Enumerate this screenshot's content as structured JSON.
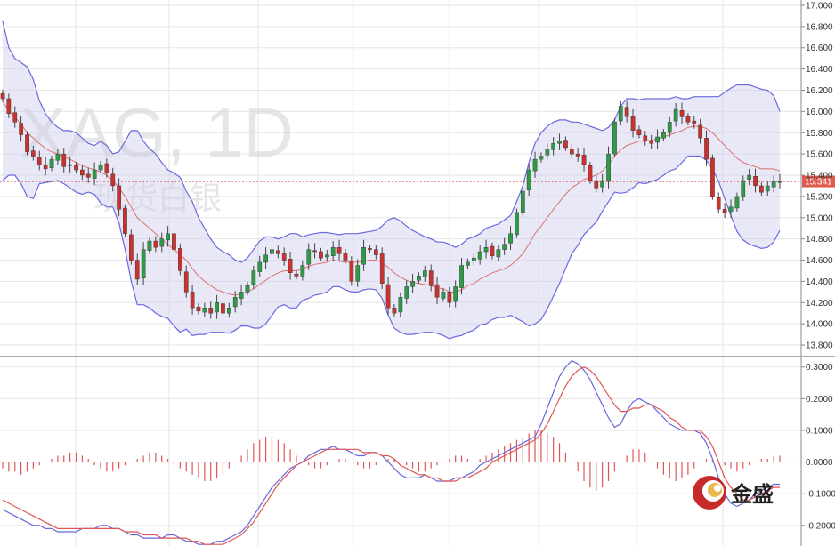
{
  "chart_data": [
    {
      "type": "candlestick",
      "title": "XAG, 1D",
      "subtitle": "现货白银",
      "y_axis_side": "right",
      "ylim": [
        13.7,
        17.05
      ],
      "yticks": [
        "17.000",
        "16.800",
        "16.600",
        "16.400",
        "16.200",
        "16.000",
        "15.800",
        "15.600",
        "15.400",
        "15.200",
        "15.000",
        "14.800",
        "14.600",
        "14.400",
        "14.200",
        "14.000",
        "13.800"
      ],
      "ytick_values": [
        17.0,
        16.8,
        16.6,
        16.4,
        16.2,
        16.0,
        15.8,
        15.6,
        15.4,
        15.2,
        15.0,
        14.8,
        14.6,
        14.4,
        14.2,
        14.0,
        13.8
      ],
      "grid": true,
      "last_price": 15.341,
      "last_price_label": "15.341",
      "overlays": [
        "bollinger_upper",
        "bollinger_middle",
        "bollinger_lower"
      ],
      "closes": [
        16.12,
        15.98,
        15.9,
        15.78,
        15.62,
        15.58,
        15.5,
        15.46,
        15.55,
        15.6,
        15.48,
        15.5,
        15.45,
        15.4,
        15.38,
        15.45,
        15.5,
        15.42,
        15.3,
        15.08,
        14.85,
        14.6,
        14.42,
        14.7,
        14.78,
        14.72,
        14.8,
        14.85,
        14.7,
        14.5,
        14.3,
        14.15,
        14.12,
        14.15,
        14.1,
        14.2,
        14.1,
        14.15,
        14.25,
        14.3,
        14.36,
        14.5,
        14.58,
        14.65,
        14.7,
        14.66,
        14.6,
        14.48,
        14.45,
        14.55,
        14.7,
        14.68,
        14.62,
        14.65,
        14.72,
        14.66,
        14.6,
        14.4,
        14.55,
        14.72,
        14.7,
        14.65,
        14.38,
        14.15,
        14.1,
        14.25,
        14.35,
        14.4,
        14.45,
        14.5,
        14.36,
        14.25,
        14.3,
        14.2,
        14.35,
        14.55,
        14.58,
        14.62,
        14.68,
        14.72,
        14.64,
        14.7,
        14.75,
        14.85,
        15.05,
        15.25,
        15.45,
        15.55,
        15.58,
        15.65,
        15.7,
        15.72,
        15.66,
        15.6,
        15.58,
        15.5,
        15.35,
        15.28,
        15.35,
        15.6,
        15.9,
        16.05,
        15.95,
        15.82,
        15.78,
        15.72,
        15.7,
        15.76,
        15.8,
        15.9,
        16.02,
        15.95,
        15.9,
        15.88,
        15.75,
        15.55,
        15.2,
        15.08,
        15.05,
        15.1,
        15.2,
        15.35,
        15.4,
        15.3,
        15.24,
        15.3,
        15.34,
        15.341
      ],
      "bollinger_upper": [
        16.85,
        16.6,
        16.5,
        16.46,
        16.42,
        16.3,
        16.1,
        15.98,
        15.9,
        15.85,
        15.82,
        15.82,
        15.8,
        15.75,
        15.7,
        15.68,
        15.72,
        15.68,
        15.6,
        15.62,
        15.72,
        15.82,
        15.82,
        15.72,
        15.65,
        15.6,
        15.52,
        15.45,
        15.42,
        15.38,
        15.25,
        15.15,
        15.0,
        14.9,
        14.8,
        14.72,
        14.68,
        14.65,
        14.6,
        14.58,
        14.62,
        14.7,
        14.78,
        14.82,
        14.82,
        14.8,
        14.82,
        14.85,
        14.85,
        14.82,
        14.84,
        14.85,
        14.86,
        14.86,
        14.85,
        14.84,
        14.85,
        14.85,
        14.85,
        14.86,
        14.87,
        14.88,
        14.92,
        14.98,
        15.0,
        14.97,
        14.92,
        14.88,
        14.85,
        14.82,
        14.8,
        14.77,
        14.77,
        14.75,
        14.72,
        14.75,
        14.8,
        14.82,
        14.85,
        14.9,
        14.92,
        14.94,
        14.98,
        15.02,
        15.15,
        15.3,
        15.52,
        15.7,
        15.8,
        15.86,
        15.9,
        15.92,
        15.92,
        15.9,
        15.9,
        15.88,
        15.86,
        15.84,
        15.82,
        15.85,
        15.92,
        16.05,
        16.12,
        16.12,
        16.11,
        16.12,
        16.12,
        16.12,
        16.12,
        16.12,
        16.14,
        16.12,
        16.12,
        16.14,
        16.14,
        16.14,
        16.14,
        16.14,
        16.18,
        16.22,
        16.25,
        16.25,
        16.25,
        16.23,
        16.21,
        16.2,
        16.15,
        16.0
      ],
      "bollinger_middle": [
        16.1,
        16.0,
        15.95,
        15.88,
        15.8,
        15.75,
        15.7,
        15.65,
        15.62,
        15.6,
        15.57,
        15.55,
        15.52,
        15.49,
        15.47,
        15.45,
        15.43,
        15.4,
        15.35,
        15.28,
        15.2,
        15.1,
        15.0,
        14.95,
        14.9,
        14.85,
        14.8,
        14.75,
        14.7,
        14.65,
        14.6,
        14.52,
        14.45,
        14.4,
        14.36,
        14.32,
        14.3,
        14.28,
        14.27,
        14.28,
        14.3,
        14.33,
        14.37,
        14.41,
        14.45,
        14.48,
        14.5,
        14.5,
        14.5,
        14.52,
        14.54,
        14.56,
        14.57,
        14.58,
        14.6,
        14.59,
        14.58,
        14.58,
        14.58,
        14.59,
        14.6,
        14.6,
        14.58,
        14.53,
        14.48,
        14.44,
        14.41,
        14.39,
        14.38,
        14.37,
        14.36,
        14.34,
        14.33,
        14.3,
        14.3,
        14.32,
        14.36,
        14.38,
        14.42,
        14.45,
        14.48,
        14.5,
        14.52,
        14.55,
        14.6,
        14.66,
        14.75,
        14.85,
        14.92,
        15.0,
        15.08,
        15.15,
        15.22,
        15.28,
        15.32,
        15.36,
        15.38,
        15.4,
        15.44,
        15.5,
        15.58,
        15.64,
        15.68,
        15.7,
        15.72,
        15.72,
        15.73,
        15.74,
        15.76,
        15.78,
        15.8,
        15.82,
        15.85,
        15.86,
        15.86,
        15.84,
        15.8,
        15.74,
        15.68,
        15.62,
        15.56,
        15.52,
        15.5,
        15.48,
        15.46,
        15.46,
        15.46,
        15.44
      ],
      "bollinger_lower": [
        15.35,
        15.4,
        15.4,
        15.32,
        15.2,
        15.18,
        15.32,
        15.33,
        15.34,
        15.35,
        15.32,
        15.28,
        15.24,
        15.22,
        15.24,
        15.22,
        15.14,
        15.1,
        15.1,
        14.95,
        14.7,
        14.4,
        14.18,
        14.18,
        14.15,
        14.1,
        14.07,
        14.05,
        13.98,
        13.92,
        13.95,
        13.89,
        13.9,
        13.9,
        13.92,
        13.92,
        13.92,
        13.91,
        13.94,
        13.98,
        13.98,
        13.96,
        13.96,
        14.0,
        14.08,
        14.16,
        14.18,
        14.15,
        14.15,
        14.22,
        14.24,
        14.27,
        14.28,
        14.3,
        14.35,
        14.35,
        14.32,
        14.3,
        14.3,
        14.32,
        14.33,
        14.32,
        14.24,
        14.08,
        13.96,
        13.92,
        13.9,
        13.9,
        13.91,
        13.92,
        13.92,
        13.91,
        13.89,
        13.86,
        13.88,
        13.89,
        13.92,
        13.94,
        13.99,
        14.0,
        14.04,
        14.06,
        14.06,
        14.08,
        14.05,
        14.02,
        13.98,
        14.0,
        14.04,
        14.14,
        14.26,
        14.38,
        14.52,
        14.66,
        14.74,
        14.84,
        14.9,
        14.96,
        15.06,
        15.15,
        15.24,
        15.23,
        15.24,
        15.28,
        15.33,
        15.32,
        15.34,
        15.36,
        15.4,
        15.44,
        15.46,
        15.52,
        15.58,
        15.58,
        15.58,
        15.54,
        15.46,
        15.34,
        15.18,
        15.02,
        14.87,
        14.79,
        14.75,
        14.73,
        14.71,
        14.72,
        14.77,
        14.88
      ]
    },
    {
      "type": "macd",
      "ylim": [
        -0.265,
        0.33
      ],
      "yticks": [
        "0.3000",
        "0.2000",
        "0.1000",
        "0.0000",
        "-0.1000",
        "-0.2000"
      ],
      "ytick_values": [
        0.3,
        0.2,
        0.1,
        0.0,
        -0.1,
        -0.2
      ],
      "grid": true,
      "series": [
        {
          "role": "macd",
          "color": "#6666dd",
          "values": [
            -0.15,
            -0.16,
            -0.17,
            -0.18,
            -0.19,
            -0.2,
            -0.2,
            -0.21,
            -0.21,
            -0.22,
            -0.22,
            -0.22,
            -0.22,
            -0.21,
            -0.21,
            -0.21,
            -0.2,
            -0.2,
            -0.21,
            -0.21,
            -0.22,
            -0.23,
            -0.23,
            -0.24,
            -0.24,
            -0.24,
            -0.24,
            -0.23,
            -0.23,
            -0.24,
            -0.25,
            -0.25,
            -0.26,
            -0.26,
            -0.26,
            -0.25,
            -0.25,
            -0.24,
            -0.23,
            -0.22,
            -0.2,
            -0.17,
            -0.14,
            -0.11,
            -0.08,
            -0.06,
            -0.04,
            -0.02,
            -0.01,
            0.0,
            0.02,
            0.03,
            0.04,
            0.04,
            0.05,
            0.04,
            0.04,
            0.03,
            0.02,
            0.02,
            0.03,
            0.03,
            0.02,
            0.0,
            -0.02,
            -0.04,
            -0.05,
            -0.05,
            -0.05,
            -0.04,
            -0.05,
            -0.06,
            -0.06,
            -0.06,
            -0.05,
            -0.05,
            -0.04,
            -0.03,
            -0.01,
            0.0,
            0.01,
            0.02,
            0.03,
            0.04,
            0.05,
            0.06,
            0.07,
            0.08,
            0.12,
            0.17,
            0.22,
            0.27,
            0.3,
            0.32,
            0.31,
            0.29,
            0.26,
            0.22,
            0.18,
            0.14,
            0.11,
            0.12,
            0.16,
            0.19,
            0.2,
            0.19,
            0.18,
            0.16,
            0.14,
            0.12,
            0.11,
            0.1,
            0.1,
            0.1,
            0.09,
            0.06,
            0.01,
            -0.05,
            -0.1,
            -0.13,
            -0.14,
            -0.13,
            -0.12,
            -0.1,
            -0.09,
            -0.08,
            -0.07,
            -0.07
          ]
        },
        {
          "role": "signal",
          "color": "#e05555",
          "values": [
            -0.12,
            -0.13,
            -0.14,
            -0.15,
            -0.16,
            -0.17,
            -0.18,
            -0.19,
            -0.2,
            -0.21,
            -0.21,
            -0.21,
            -0.21,
            -0.21,
            -0.21,
            -0.21,
            -0.21,
            -0.21,
            -0.21,
            -0.21,
            -0.22,
            -0.22,
            -0.22,
            -0.23,
            -0.23,
            -0.23,
            -0.24,
            -0.24,
            -0.24,
            -0.24,
            -0.24,
            -0.25,
            -0.25,
            -0.26,
            -0.26,
            -0.26,
            -0.26,
            -0.25,
            -0.24,
            -0.23,
            -0.21,
            -0.19,
            -0.16,
            -0.13,
            -0.1,
            -0.07,
            -0.05,
            -0.03,
            -0.01,
            0.0,
            0.01,
            0.02,
            0.03,
            0.04,
            0.04,
            0.04,
            0.04,
            0.04,
            0.04,
            0.03,
            0.03,
            0.03,
            0.02,
            0.02,
            0.01,
            -0.01,
            -0.02,
            -0.03,
            -0.04,
            -0.04,
            -0.05,
            -0.05,
            -0.06,
            -0.06,
            -0.06,
            -0.05,
            -0.05,
            -0.04,
            -0.03,
            -0.02,
            0.0,
            0.01,
            0.02,
            0.03,
            0.04,
            0.05,
            0.06,
            0.07,
            0.09,
            0.12,
            0.16,
            0.2,
            0.24,
            0.27,
            0.29,
            0.3,
            0.29,
            0.27,
            0.24,
            0.21,
            0.18,
            0.16,
            0.16,
            0.17,
            0.17,
            0.18,
            0.18,
            0.17,
            0.16,
            0.14,
            0.13,
            0.11,
            0.1,
            0.1,
            0.1,
            0.08,
            0.05,
            0.0,
            -0.05,
            -0.08,
            -0.1,
            -0.12,
            -0.12,
            -0.11,
            -0.1,
            -0.09,
            -0.08,
            -0.08
          ]
        },
        {
          "role": "histogram",
          "color": "#e05555",
          "values": [
            -0.02,
            -0.03,
            -0.03,
            -0.04,
            -0.03,
            -0.02,
            -0.01,
            0.0,
            0.01,
            0.02,
            0.02,
            0.03,
            0.03,
            0.02,
            0.01,
            -0.01,
            -0.02,
            -0.03,
            -0.03,
            -0.02,
            -0.01,
            0.0,
            0.01,
            0.02,
            0.03,
            0.03,
            0.02,
            0.01,
            -0.01,
            -0.02,
            -0.03,
            -0.04,
            -0.05,
            -0.06,
            -0.06,
            -0.05,
            -0.04,
            -0.02,
            0.0,
            0.02,
            0.04,
            0.06,
            0.07,
            0.08,
            0.08,
            0.07,
            0.06,
            0.04,
            0.02,
            0.0,
            -0.01,
            -0.02,
            -0.02,
            -0.01,
            0.0,
            0.01,
            0.01,
            0.0,
            -0.01,
            -0.02,
            -0.02,
            -0.01,
            0.0,
            0.01,
            0.01,
            0.0,
            -0.01,
            -0.02,
            -0.03,
            -0.03,
            -0.02,
            -0.01,
            0.0,
            0.01,
            0.02,
            0.02,
            0.01,
            0.0,
            0.01,
            0.02,
            0.03,
            0.04,
            0.05,
            0.06,
            0.07,
            0.08,
            0.09,
            0.1,
            0.1,
            0.09,
            0.08,
            0.06,
            0.03,
            0.0,
            -0.03,
            -0.06,
            -0.08,
            -0.09,
            -0.08,
            -0.06,
            -0.03,
            0.0,
            0.02,
            0.04,
            0.04,
            0.03,
            0.0,
            -0.02,
            -0.04,
            -0.05,
            -0.06,
            -0.05,
            -0.04,
            -0.02,
            0.0,
            0.01,
            0.01,
            0.0,
            -0.01,
            -0.02,
            -0.03,
            -0.02,
            -0.01,
            0.0,
            0.01,
            0.01,
            0.02,
            0.02
          ]
        }
      ]
    }
  ],
  "colors": {
    "bull": "#2e9a46",
    "bear": "#c8322f",
    "band_fill": "#ccccee",
    "band_line": "#6a6adf",
    "middle_line": "#e07070",
    "grid": "#e6e6e6",
    "price_label_bg": "#e05a4f"
  },
  "brand": {
    "logo_icon": "jinsheng-logo-icon",
    "name": "金盛"
  }
}
